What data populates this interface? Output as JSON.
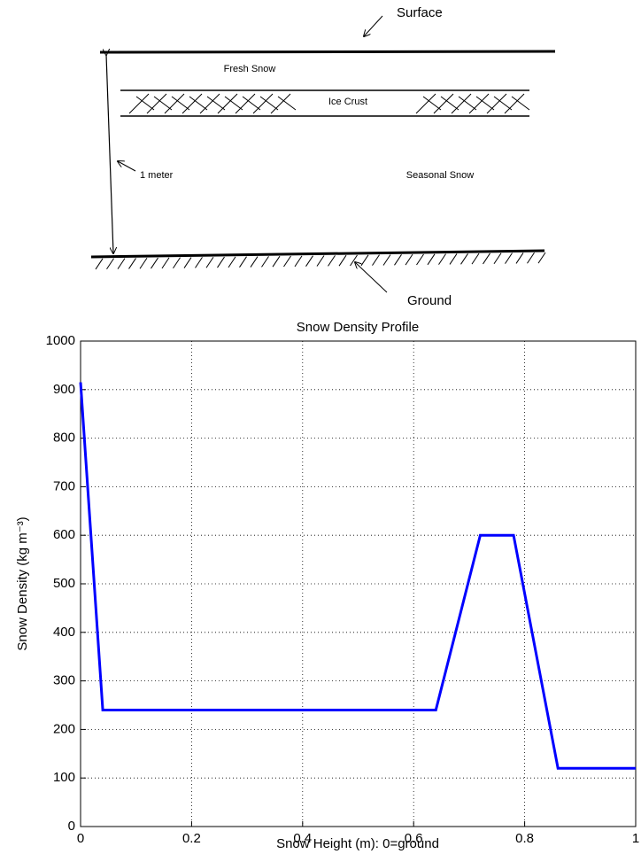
{
  "diagram": {
    "surface": "Surface",
    "fresh_snow": "Fresh Snow",
    "ice_crust": "Ice Crust",
    "height": "1 meter",
    "seasonal_snow": "Seasonal Snow",
    "ground": "Ground"
  },
  "chart_data": {
    "type": "line",
    "title": "Snow Density Profile",
    "xlabel": "Snow Height (m): 0=ground",
    "ylabel": "Snow Density (kg m⁻³)",
    "x": [
      0,
      0.04,
      0.64,
      0.72,
      0.78,
      0.86,
      1
    ],
    "series": [
      {
        "color": "#0000ff",
        "values": [
          915,
          240,
          240,
          600,
          600,
          120,
          120
        ]
      }
    ],
    "xlim": [
      0,
      1
    ],
    "xticks": [
      0,
      0.2,
      0.4,
      0.6,
      0.8,
      1
    ],
    "ylim": [
      0,
      1000
    ],
    "yticks": [
      0,
      100,
      200,
      300,
      400,
      500,
      600,
      700,
      800,
      900,
      1000
    ],
    "grid": true
  }
}
